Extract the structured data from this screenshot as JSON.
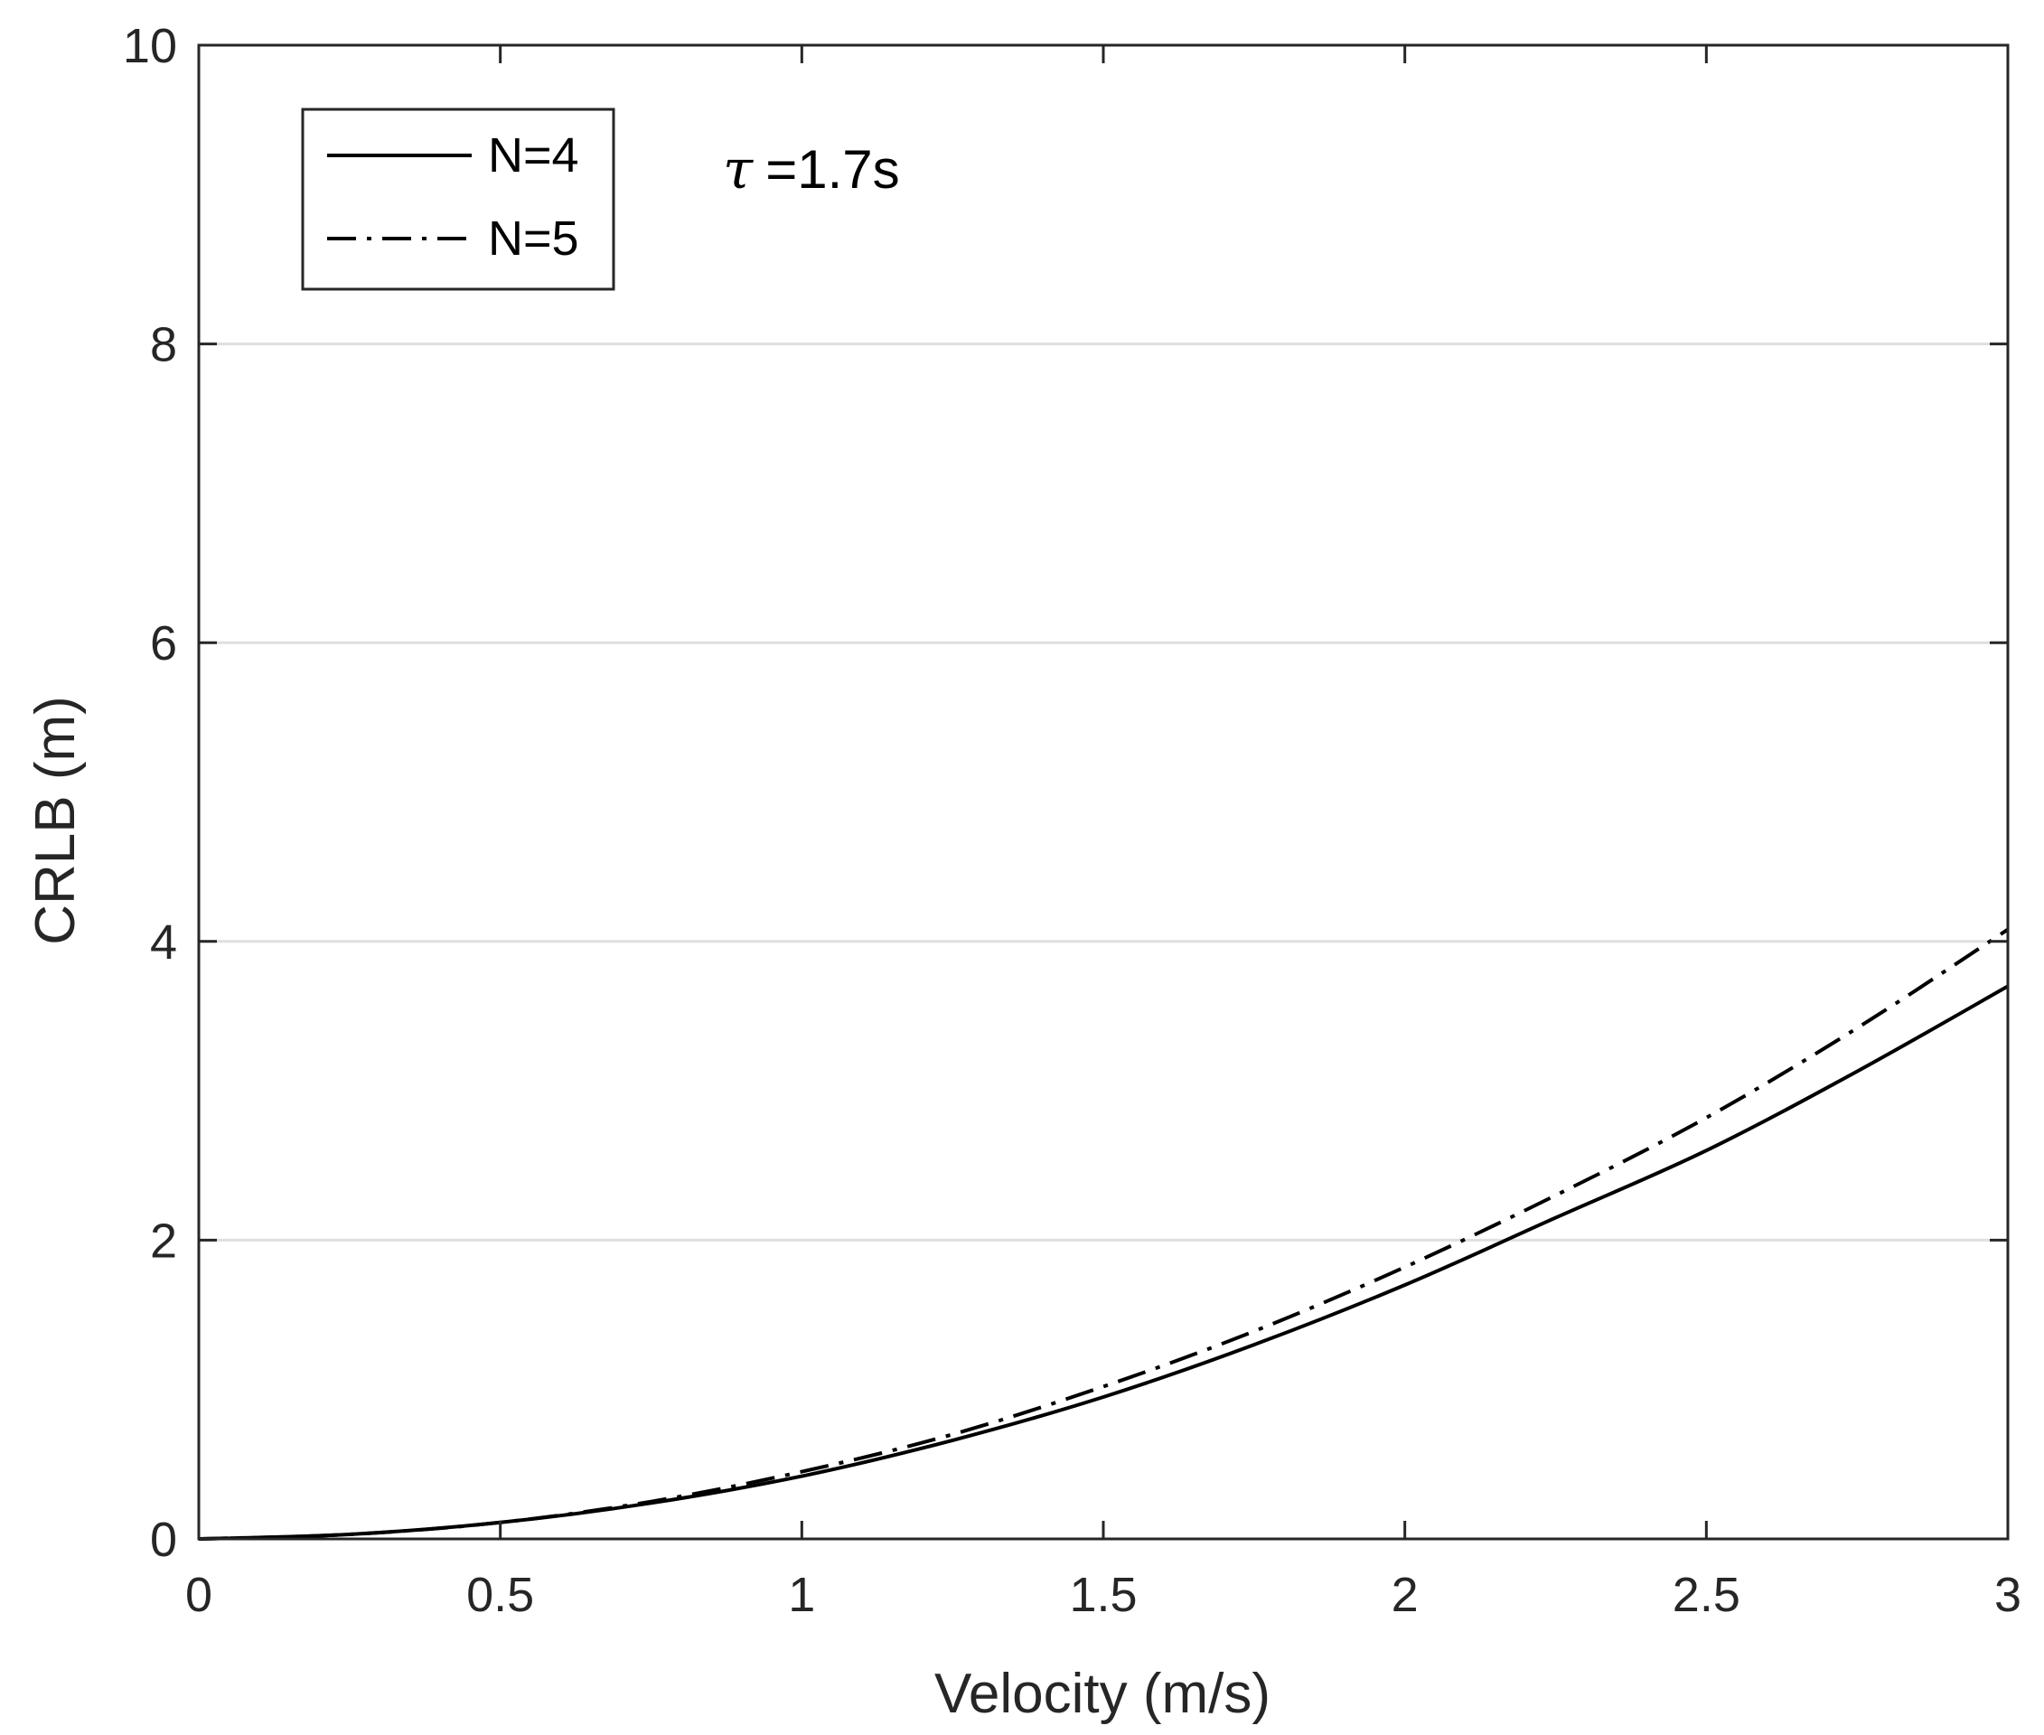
{
  "chart_data": {
    "type": "line",
    "title": "",
    "xlabel": "Velocity (m/s)",
    "ylabel": "CRLB (m)",
    "xlim": [
      0,
      3
    ],
    "ylim": [
      0,
      10
    ],
    "xticks": [
      0,
      0.5,
      1,
      1.5,
      2,
      2.5,
      3
    ],
    "xtick_labels": [
      "0",
      "0.5",
      "1",
      "1.5",
      "2",
      "2.5",
      "3"
    ],
    "yticks": [
      0,
      2,
      4,
      6,
      8,
      10
    ],
    "ytick_labels": [
      "0",
      "2",
      "4",
      "6",
      "8",
      "10"
    ],
    "grid": "horizontal",
    "legend_position": "top-left",
    "annotation": {
      "symbol": "τ",
      "text": "=1.7s"
    },
    "series": [
      {
        "name": "N=4",
        "style": "solid",
        "color": "#000000",
        "x": [
          0,
          0.25,
          0.5,
          0.75,
          1,
          1.25,
          1.5,
          1.75,
          2,
          2.25,
          2.5,
          2.75,
          3
        ],
        "y": [
          0,
          0.03,
          0.11,
          0.24,
          0.42,
          0.66,
          0.95,
          1.3,
          1.7,
          2.15,
          2.6,
          3.13,
          3.7
        ]
      },
      {
        "name": "N=5",
        "style": "dashdot",
        "color": "#000000",
        "x": [
          0,
          0.25,
          0.5,
          0.75,
          1,
          1.25,
          1.5,
          1.75,
          2,
          2.25,
          2.5,
          2.75,
          3
        ],
        "y": [
          0,
          0.03,
          0.11,
          0.25,
          0.45,
          0.7,
          1.02,
          1.39,
          1.82,
          2.3,
          2.82,
          3.42,
          4.08
        ]
      }
    ]
  }
}
